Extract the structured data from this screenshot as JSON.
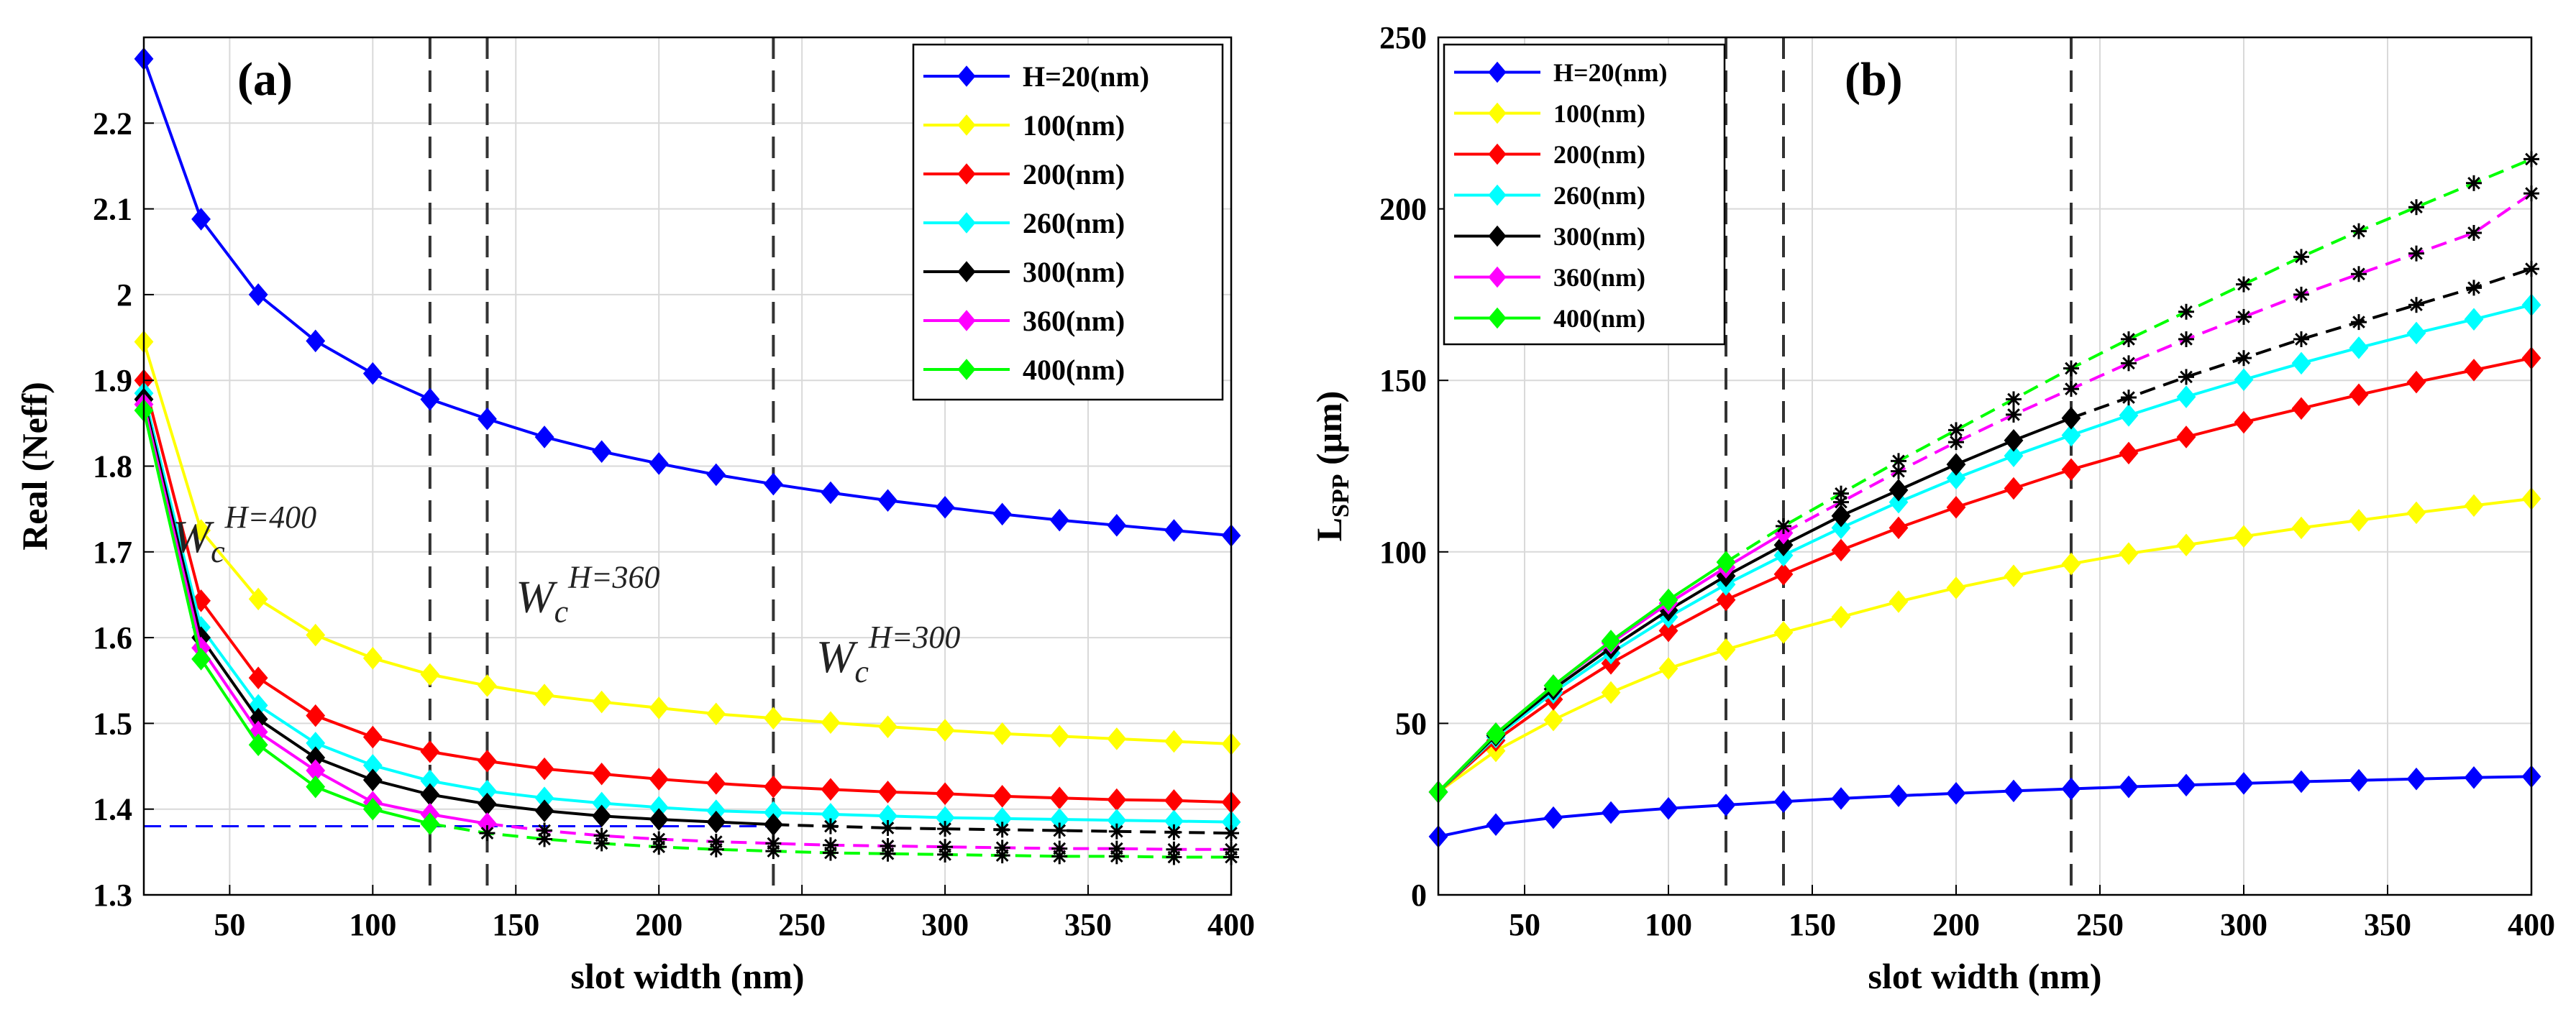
{
  "colors": {
    "H20": "#0000ff",
    "H100": "#ffff00",
    "H200": "#ff0000",
    "H260": "#00ffff",
    "H300": "#000000",
    "H360": "#ff00ff",
    "H400": "#00ff00",
    "ref_line": "#0000ff",
    "grid": "#d9d9d9",
    "vline": "#333333"
  },
  "chart_data": [
    {
      "type": "line",
      "panel_label": "(a)",
      "xlabel": "slot width (nm)",
      "ylabel": "Real (Neff)",
      "xlim": [
        20,
        400
      ],
      "ylim": [
        1.3,
        2.3
      ],
      "xticks": [
        50,
        100,
        150,
        200,
        250,
        300,
        350,
        400
      ],
      "yticks": [
        1.3,
        1.4,
        1.5,
        1.6,
        1.7,
        1.8,
        1.9,
        2,
        2.1,
        2.2
      ],
      "ytick_labels": [
        "1.3",
        "1.4",
        "1.5",
        "1.6",
        "1.7",
        "1.8",
        "1.9",
        "2",
        "2.1",
        "2.2"
      ],
      "grid": true,
      "legend_position": "top-right",
      "vertical_dashed_lines": [
        120,
        140,
        240
      ],
      "horizontal_dashed_line": {
        "y": 1.38,
        "x_range": [
          20,
          240
        ]
      },
      "annotations": [
        {
          "main": "W",
          "sub": "c",
          "sup": "H=400",
          "at": [
            30,
            1.7
          ]
        },
        {
          "main": "W",
          "sub": "c",
          "sup": "H=360",
          "at": [
            150,
            1.63
          ]
        },
        {
          "main": "W",
          "sub": "c",
          "sup": "H=300",
          "at": [
            255,
            1.56
          ]
        }
      ],
      "x": [
        20,
        40,
        60,
        80,
        100,
        120,
        140,
        160,
        180,
        200,
        220,
        240,
        260,
        280,
        300,
        320,
        340,
        360,
        380,
        400
      ],
      "series": [
        {
          "name": "H=20(nm)",
          "color_key": "H20",
          "solid_until": 400,
          "values": [
            2.275,
            2.088,
            2.0,
            1.946,
            1.908,
            1.878,
            1.855,
            1.834,
            1.817,
            1.803,
            1.79,
            1.779,
            1.769,
            1.76,
            1.752,
            1.744,
            1.737,
            1.731,
            1.725,
            1.719
          ]
        },
        {
          "name": "100(nm)",
          "color_key": "H100",
          "solid_until": 400,
          "values": [
            1.945,
            1.725,
            1.645,
            1.603,
            1.576,
            1.557,
            1.544,
            1.533,
            1.525,
            1.518,
            1.511,
            1.506,
            1.501,
            1.496,
            1.492,
            1.488,
            1.485,
            1.482,
            1.479,
            1.476
          ]
        },
        {
          "name": "200(nm)",
          "color_key": "H200",
          "solid_until": 400,
          "values": [
            1.9,
            1.643,
            1.553,
            1.509,
            1.484,
            1.467,
            1.456,
            1.447,
            1.441,
            1.435,
            1.43,
            1.426,
            1.423,
            1.42,
            1.418,
            1.415,
            1.413,
            1.411,
            1.41,
            1.408
          ]
        },
        {
          "name": "260(nm)",
          "color_key": "H260",
          "solid_until": 400,
          "values": [
            1.885,
            1.612,
            1.521,
            1.477,
            1.451,
            1.433,
            1.421,
            1.413,
            1.407,
            1.402,
            1.398,
            1.396,
            1.394,
            1.392,
            1.39,
            1.389,
            1.388,
            1.387,
            1.386,
            1.385
          ]
        },
        {
          "name": "300(nm)",
          "color_key": "H300",
          "solid_until": 240,
          "values": [
            1.878,
            1.6,
            1.505,
            1.46,
            1.434,
            1.417,
            1.406,
            1.398,
            1.392,
            1.388,
            1.385,
            1.382,
            1.38,
            1.378,
            1.377,
            1.376,
            1.375,
            1.374,
            1.373,
            1.372
          ]
        },
        {
          "name": "360(nm)",
          "color_key": "H360",
          "solid_until": 140,
          "values": [
            1.872,
            1.588,
            1.49,
            1.445,
            1.408,
            1.394,
            1.383,
            1.375,
            1.369,
            1.365,
            1.362,
            1.36,
            1.358,
            1.357,
            1.356,
            1.355,
            1.354,
            1.354,
            1.353,
            1.353
          ]
        },
        {
          "name": "400(nm)",
          "color_key": "H400",
          "solid_until": 120,
          "values": [
            1.865,
            1.575,
            1.475,
            1.426,
            1.4,
            1.383,
            1.372,
            1.365,
            1.36,
            1.356,
            1.353,
            1.351,
            1.349,
            1.348,
            1.347,
            1.346,
            1.345,
            1.345,
            1.344,
            1.344
          ]
        }
      ]
    },
    {
      "type": "line",
      "panel_label": "(b)",
      "xlabel": "slot width (nm)",
      "ylabel_main": "L",
      "ylabel_sub": "SPP",
      "ylabel_unit": " (μm)",
      "xlim": [
        20,
        400
      ],
      "ylim": [
        0,
        250
      ],
      "xticks": [
        50,
        100,
        150,
        200,
        250,
        300,
        350,
        400
      ],
      "yticks": [
        0,
        50,
        100,
        150,
        200,
        250
      ],
      "ytick_labels": [
        "0",
        "50",
        "100",
        "150",
        "200",
        "250"
      ],
      "grid": true,
      "legend_position": "top-left",
      "vertical_dashed_lines": [
        120,
        140,
        240
      ],
      "x": [
        20,
        40,
        60,
        80,
        100,
        120,
        140,
        160,
        180,
        200,
        220,
        240,
        260,
        280,
        300,
        320,
        340,
        360,
        380,
        400
      ],
      "series": [
        {
          "name": "H=20(nm)",
          "color_key": "H20",
          "solid_until": 400,
          "values": [
            17,
            20.5,
            22.5,
            24,
            25.2,
            26.2,
            27.2,
            28.1,
            28.9,
            29.6,
            30.3,
            30.9,
            31.5,
            32,
            32.5,
            33,
            33.4,
            33.8,
            34.2,
            34.5
          ]
        },
        {
          "name": "100(nm)",
          "color_key": "H100",
          "solid_until": 400,
          "values": [
            30,
            42,
            51,
            59,
            66,
            71.5,
            76.5,
            81,
            85.5,
            89.5,
            93,
            96.5,
            99.5,
            102,
            104.5,
            107,
            109.2,
            111.4,
            113.5,
            115.5
          ]
        },
        {
          "name": "200(nm)",
          "color_key": "H200",
          "solid_until": 400,
          "values": [
            30,
            45,
            57,
            67.5,
            77,
            86,
            93.5,
            100.5,
            107,
            113,
            118.5,
            124,
            128.8,
            133.5,
            137.8,
            141.8,
            145.8,
            149.5,
            153,
            156.5
          ]
        },
        {
          "name": "260(nm)",
          "color_key": "H260",
          "solid_until": 400,
          "values": [
            30,
            46,
            59,
            70.5,
            81,
            90.5,
            99,
            107,
            114.5,
            121.5,
            128,
            134,
            139.8,
            145.2,
            150.2,
            155,
            159.5,
            163.8,
            167.8,
            172
          ]
        },
        {
          "name": "300(nm)",
          "color_key": "H300",
          "solid_until": 240,
          "values": [
            30,
            46.5,
            60,
            72,
            83,
            93,
            102,
            110.5,
            118,
            125.5,
            132.5,
            139,
            145,
            151,
            156.5,
            162,
            167,
            172,
            177,
            182.5
          ]
        },
        {
          "name": "360(nm)",
          "color_key": "H360",
          "solid_until": 140,
          "values": [
            30,
            47,
            61,
            73.5,
            85,
            95.5,
            105.5,
            114.5,
            123.5,
            132,
            140,
            147.5,
            155,
            162,
            168.5,
            175,
            181,
            187,
            193,
            204.5
          ]
        },
        {
          "name": "400(nm)",
          "color_key": "H400",
          "solid_until": 120,
          "values": [
            30,
            47,
            61,
            74,
            86,
            97,
            107.5,
            117,
            126.5,
            135.5,
            144.5,
            153.5,
            162,
            170,
            178,
            186,
            193.5,
            200.5,
            207.5,
            214.5
          ]
        }
      ]
    }
  ]
}
